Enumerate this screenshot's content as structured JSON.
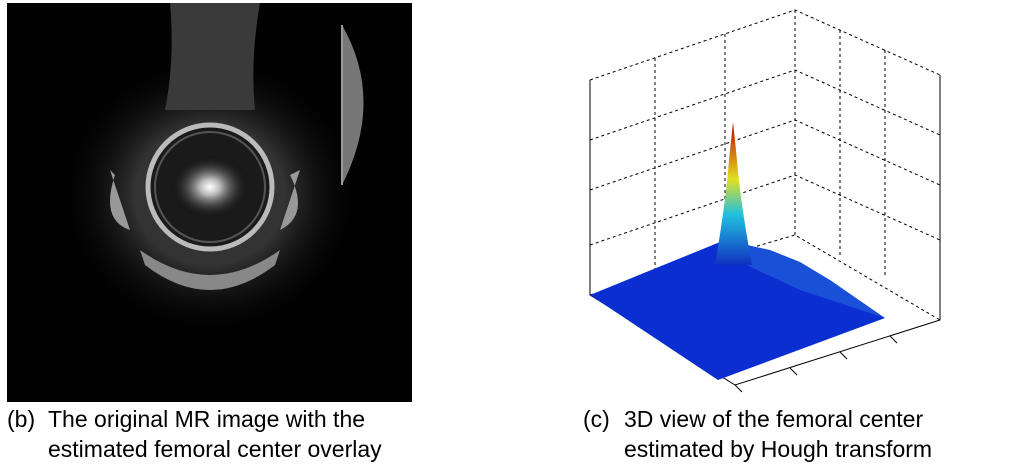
{
  "panels": [
    {
      "label": "(b)",
      "caption_lines": [
        "The original MR image with the",
        "estimated femoral center overlay"
      ]
    },
    {
      "label": "(c)",
      "caption_lines": [
        "3D view of the femoral center",
        "estimated by Hough transform"
      ]
    }
  ]
}
